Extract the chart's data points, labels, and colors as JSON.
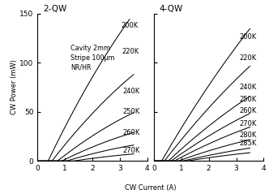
{
  "title_left": "2-QW",
  "title_right": "4-QW",
  "annotation": "Cavity 2mm\nStripe 100μm\nNR/HR",
  "xlabel": "CW Current (A)",
  "ylabel": "CW Power (mW)",
  "xlim": [
    0,
    4
  ],
  "ylim": [
    0,
    150
  ],
  "xticks": [
    0,
    1,
    2,
    3,
    4
  ],
  "yticks": [
    0,
    50,
    100,
    150
  ],
  "left_curves": {
    "labels": [
      "200K",
      "220K",
      "240K",
      "250K",
      "260K",
      "270K"
    ],
    "threshold": [
      0.38,
      0.52,
      0.72,
      0.88,
      1.05,
      1.3
    ],
    "slope": [
      58,
      36,
      22,
      14,
      8.5,
      4.2
    ],
    "rollover": [
      0.055,
      0.06,
      0.07,
      0.08,
      0.09,
      0.1
    ],
    "max_current": [
      3.35,
      3.5,
      3.5,
      3.5,
      3.5,
      3.5
    ],
    "label_x": [
      3.05,
      3.08,
      3.1,
      3.1,
      3.1,
      3.1
    ],
    "label_y": [
      138,
      111,
      71,
      50,
      29,
      11
    ]
  },
  "right_curves": {
    "labels": [
      "200K",
      "220K",
      "240K",
      "250K",
      "260K",
      "270K",
      "280K",
      "285K"
    ],
    "threshold": [
      0.28,
      0.38,
      0.52,
      0.62,
      0.74,
      0.88,
      1.05,
      1.2
    ],
    "slope": [
      48,
      36,
      26,
      20,
      15,
      10,
      6.5,
      4.5
    ],
    "rollover": [
      0.04,
      0.045,
      0.05,
      0.055,
      0.06,
      0.065,
      0.07,
      0.08
    ],
    "max_current": [
      3.5,
      3.5,
      3.5,
      3.5,
      3.5,
      3.5,
      3.5,
      3.5
    ],
    "label_x": [
      3.1,
      3.1,
      3.1,
      3.1,
      3.1,
      3.1,
      3.1,
      3.1
    ],
    "label_y": [
      126,
      105,
      75,
      63,
      51,
      38,
      26,
      18
    ]
  },
  "line_color": "#000000",
  "bg_color": "#ffffff",
  "label_fontsize": 6.0,
  "tick_fontsize": 6.5,
  "title_fontsize": 7.5,
  "annot_fontsize": 5.8
}
